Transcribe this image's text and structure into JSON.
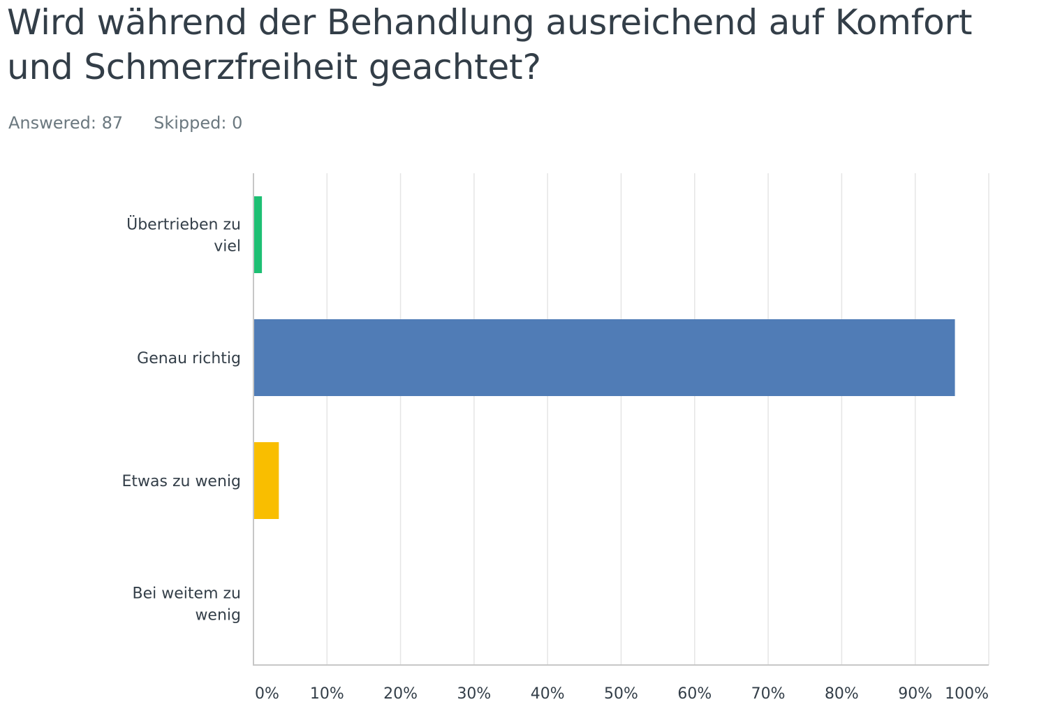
{
  "question": {
    "title": "Wird während der Behandlung ausreichend auf Komfort und Schmerzfreiheit geachtet?"
  },
  "stats": {
    "answered": "Answered: 87",
    "skipped": "Skipped: 0"
  },
  "colors": {
    "bar_1": "#1dbf73",
    "bar_2": "#507cb6",
    "bar_3": "#f9be00",
    "bar_4": "#6bc8cd",
    "grid": "#e5e5e5",
    "axis": "#c7c7c7"
  },
  "chart_data": {
    "type": "bar",
    "orientation": "horizontal",
    "categories": [
      [
        "Übertrieben zu",
        "viel"
      ],
      [
        "Genau richtig"
      ],
      [
        "Etwas zu wenig"
      ],
      [
        "Bei weitem zu",
        "wenig"
      ]
    ],
    "values": [
      1.15,
      95.4,
      3.45,
      0
    ],
    "xlim": [
      0,
      100
    ],
    "ticks": [
      "0%",
      "10%",
      "20%",
      "30%",
      "40%",
      "50%",
      "60%",
      "70%",
      "80%",
      "90%",
      "100%"
    ],
    "grid": true
  }
}
